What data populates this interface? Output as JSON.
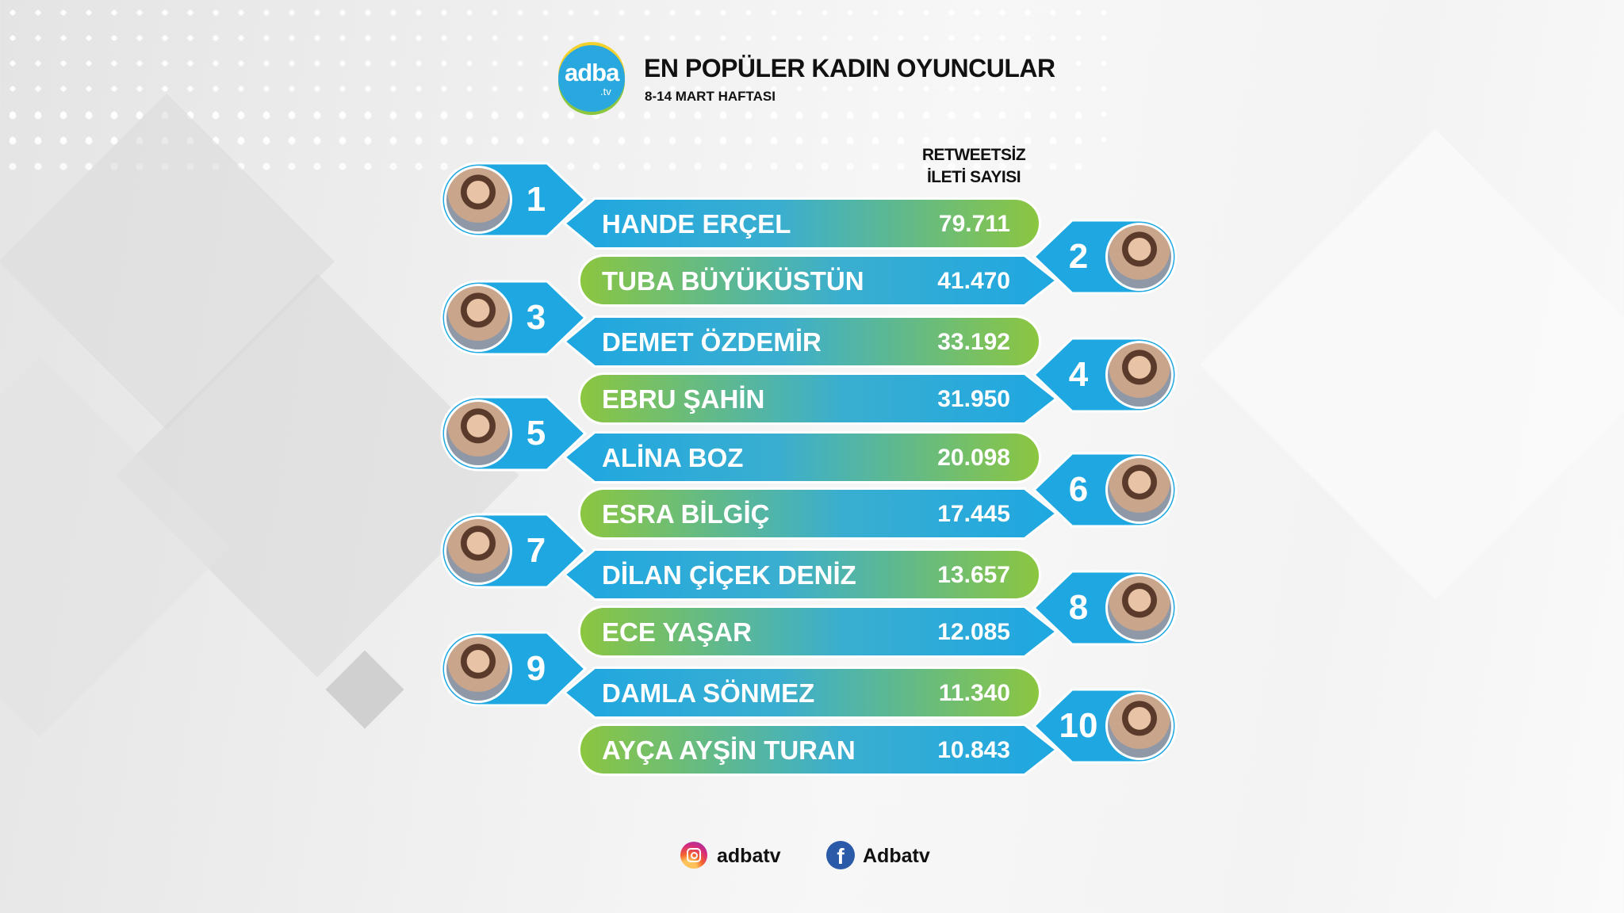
{
  "header": {
    "logo_text": "adba",
    "logo_suffix": ".tv",
    "title": "EN POPÜLER KADIN OYUNCULAR",
    "subtitle": "8-14 MART HAFTASI",
    "column_header_line1": "RETWEETSİZ",
    "column_header_line2": "İLETİ SAYISI"
  },
  "colors": {
    "blue": "#1ea7e1",
    "green": "#8cc63f"
  },
  "chart_data": {
    "type": "table",
    "title": "EN POPÜLER KADIN OYUNCULAR",
    "subtitle": "8-14 MART HAFTASI",
    "columns": [
      "",
      "",
      "RETWEETSİZ İLETİ SAYISI"
    ],
    "rows": [
      {
        "rank": "1",
        "name": "HANDE ERÇEL",
        "value": "79.711"
      },
      {
        "rank": "2",
        "name": "TUBA BÜYÜKÜSTÜN",
        "value": "41.470"
      },
      {
        "rank": "3",
        "name": "DEMET ÖZDEMİR",
        "value": "33.192"
      },
      {
        "rank": "4",
        "name": "EBRU ŞAHİN",
        "value": "31.950"
      },
      {
        "rank": "5",
        "name": "ALİNA BOZ",
        "value": "20.098"
      },
      {
        "rank": "6",
        "name": "ESRA BİLGİÇ",
        "value": "17.445"
      },
      {
        "rank": "7",
        "name": "DİLAN ÇİÇEK DENİZ",
        "value": "13.657"
      },
      {
        "rank": "8",
        "name": "ECE YAŞAR",
        "value": "12.085"
      },
      {
        "rank": "9",
        "name": "DAMLA SÖNMEZ",
        "value": "11.340"
      },
      {
        "rank": "10",
        "name": "AYÇA AYŞİN TURAN",
        "value": "10.843"
      }
    ]
  },
  "footer": {
    "instagram_icon": "instagram-icon",
    "instagram_handle": "adbatv",
    "facebook_icon": "facebook-icon",
    "facebook_handle": "Adbatv"
  }
}
